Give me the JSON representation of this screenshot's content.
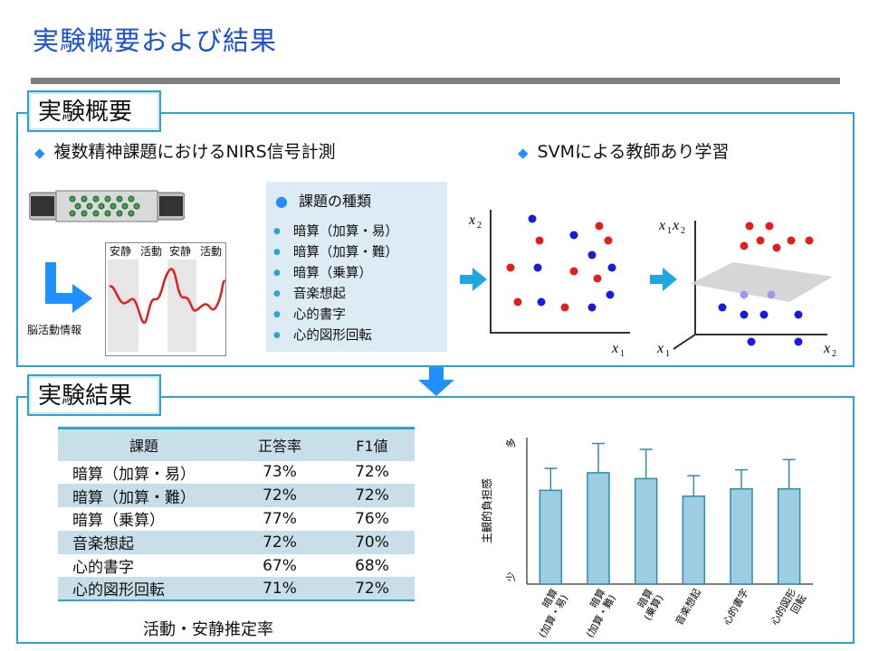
{
  "title": "実験概要および結果",
  "overview": {
    "tab": "実験概要",
    "left_heading": "複数精神課題におけるNIRS信号計測",
    "right_heading": "SVMによる教師あり学習",
    "brain_label": "脳活動情報",
    "signal_labels": [
      "安静",
      "活動",
      "安静",
      "活動"
    ],
    "task_box_title": "課題の種類",
    "tasks": [
      "暗算（加算・易）",
      "暗算（加算・難）",
      "暗算（乗算）",
      "音楽想起",
      "心的書字",
      "心的図形回転"
    ],
    "scatter2d_axes": {
      "x": "x1",
      "y": "x2"
    },
    "scatter3d_axes": {
      "x": "x2",
      "y": "x1",
      "z": "x1x2"
    }
  },
  "results": {
    "tab": "実験結果",
    "table": {
      "headers": [
        "課題",
        "正答率",
        "F1値"
      ],
      "rows": [
        [
          "暗算（加算・易）",
          "73%",
          "72%"
        ],
        [
          "暗算（加算・難）",
          "72%",
          "72%"
        ],
        [
          "暗算（乗算）",
          "77%",
          "76%"
        ],
        [
          "音楽想起",
          "72%",
          "70%"
        ],
        [
          "心的書字",
          "67%",
          "68%"
        ],
        [
          "心的図形回転",
          "71%",
          "72%"
        ]
      ],
      "caption": "活動・安静推定率"
    }
  },
  "chart_data": {
    "type": "bar",
    "ylabel": "主観的負担感",
    "y_top_label": "多",
    "y_bottom_label": "少",
    "categories": [
      "暗算\n(加算・易)",
      "暗算\n(加算・難)",
      "暗算\n(乗算)",
      "音楽想起",
      "心的書字",
      "心的図形\n回転"
    ],
    "values": [
      0.64,
      0.76,
      0.72,
      0.6,
      0.65,
      0.65
    ],
    "errors": [
      0.15,
      0.2,
      0.2,
      0.14,
      0.13,
      0.2
    ],
    "ylim": [
      0,
      1
    ],
    "color": "#9ccde0",
    "edge_color": "#2f8cb0"
  }
}
